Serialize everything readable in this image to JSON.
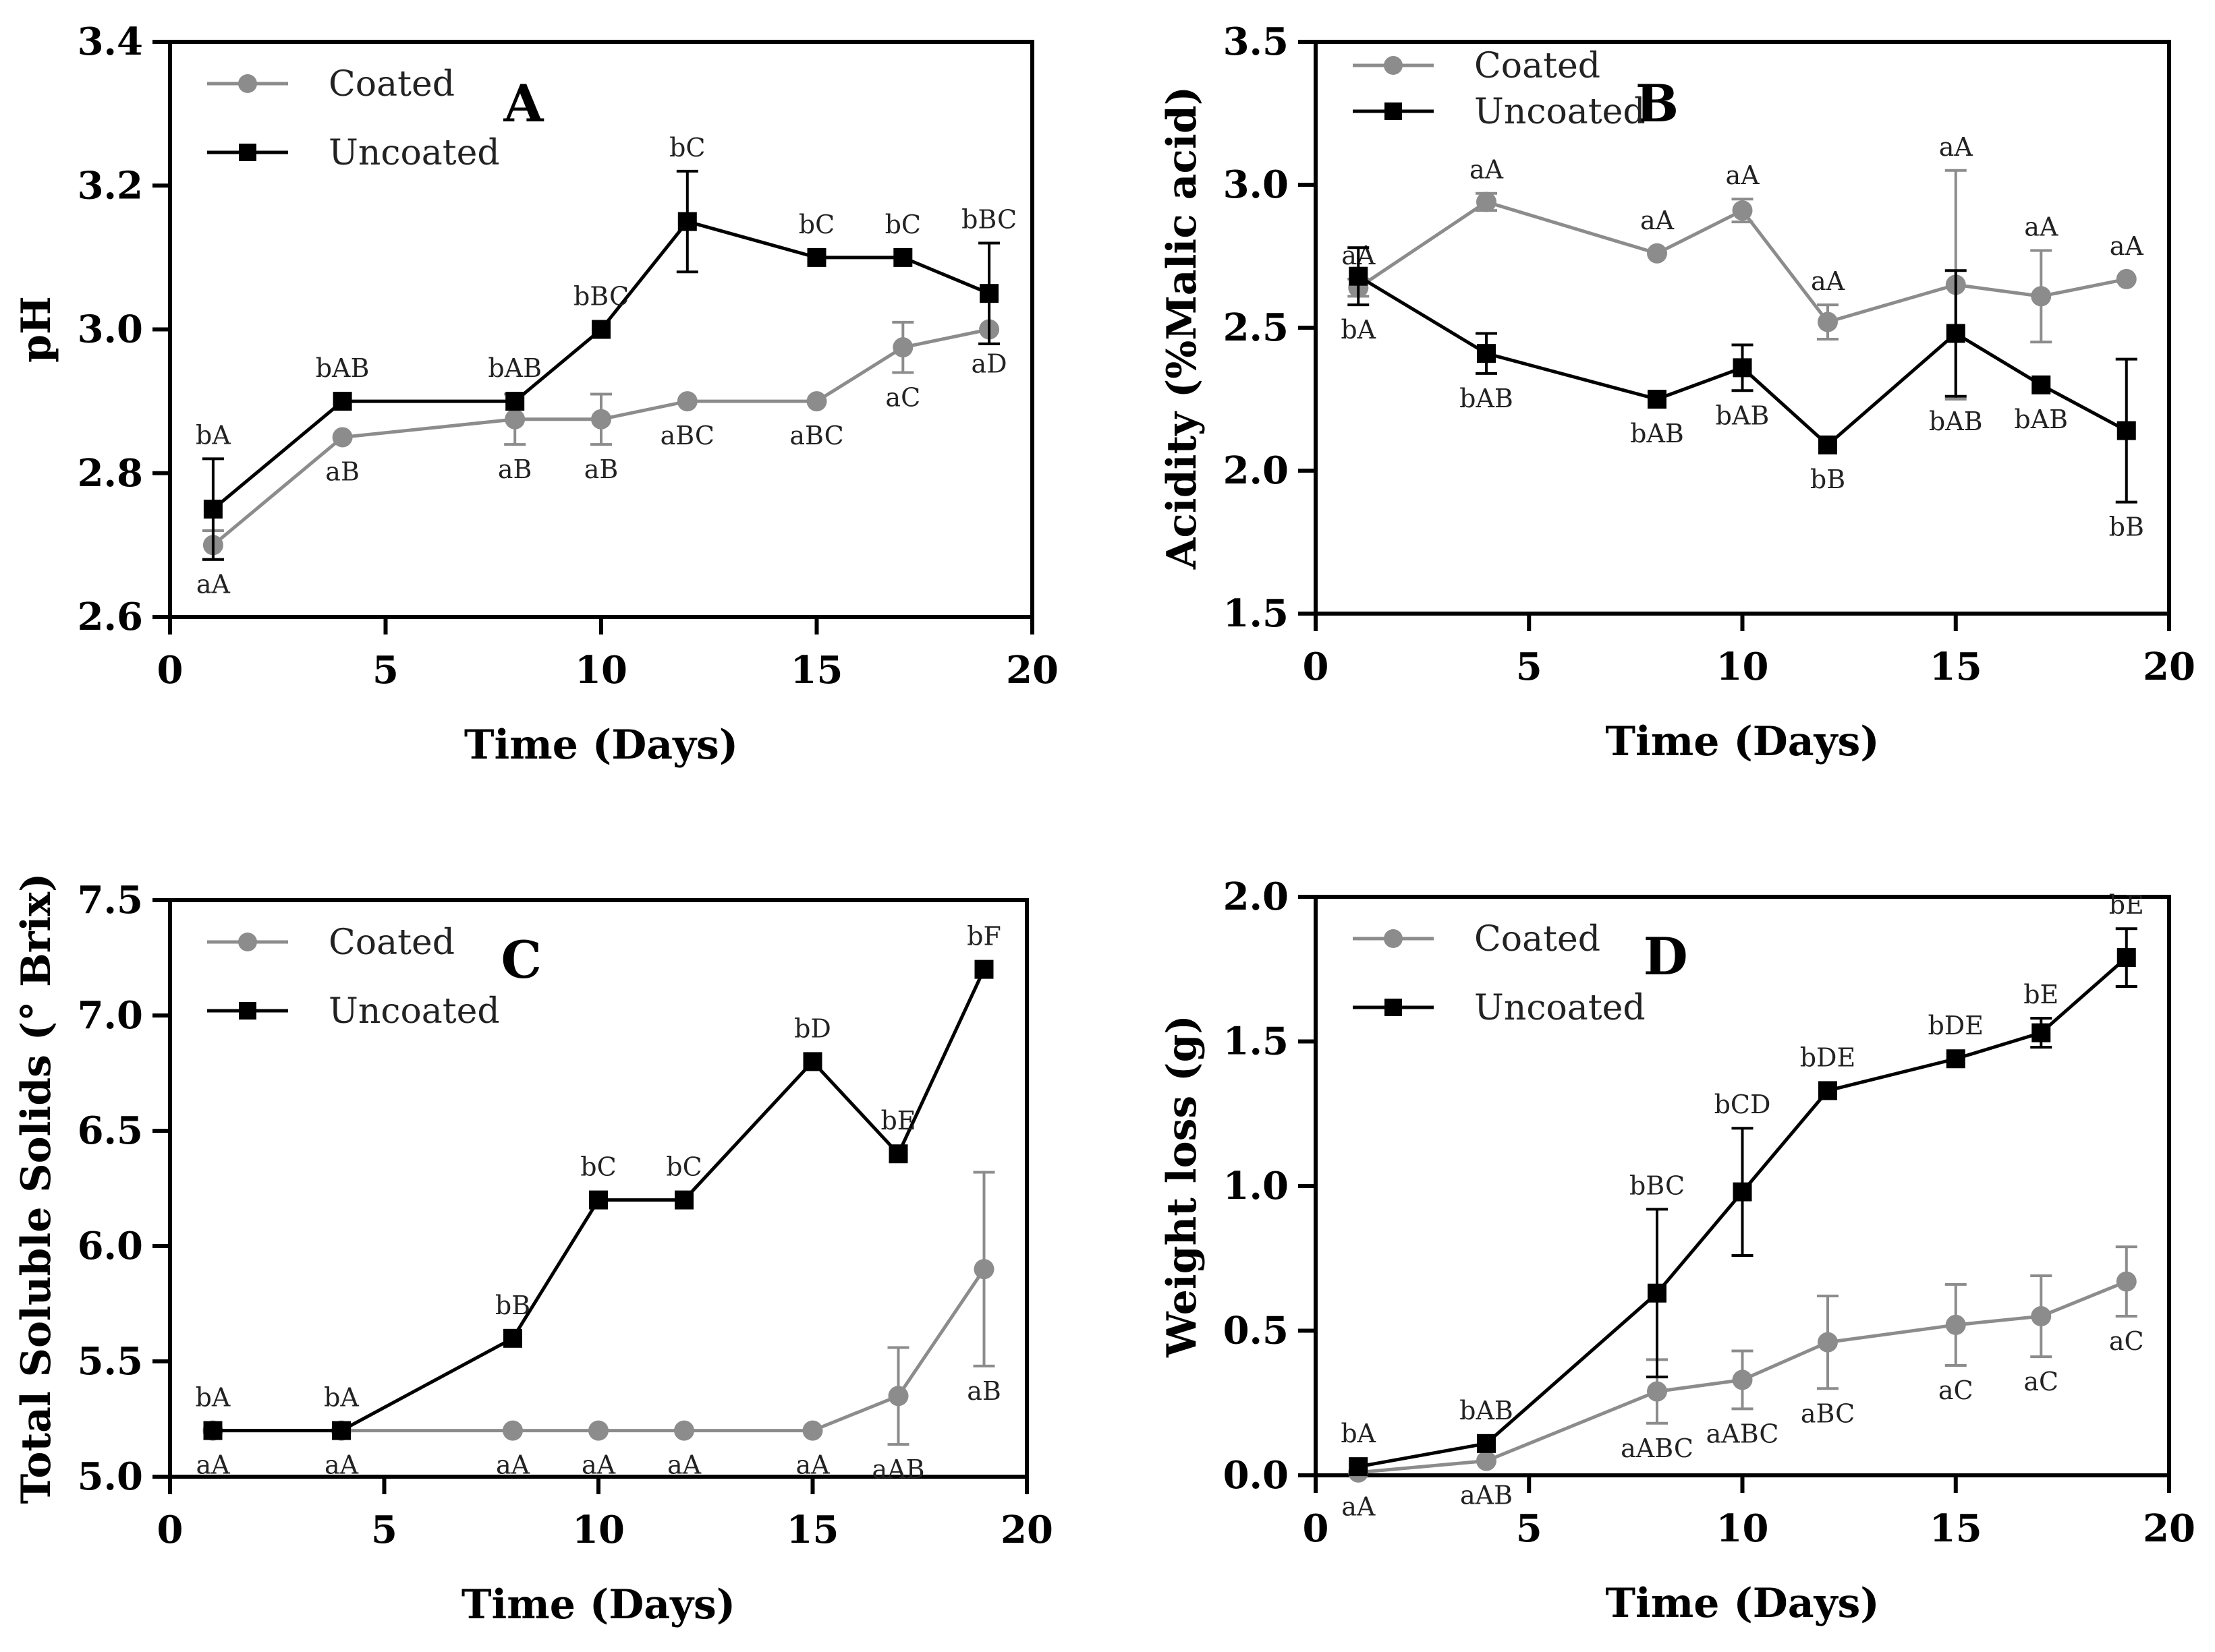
{
  "figure": {
    "colors": {
      "coated": "#8c8c8c",
      "uncoated": "#000000"
    },
    "marker_shapes": {
      "coated": "circle",
      "uncoated": "square"
    }
  },
  "chart_data": [
    {
      "id": "A",
      "type": "line",
      "panel_label": "A",
      "xlabel": "Time (Days)",
      "ylabel": "pH",
      "xlim": [
        0,
        20
      ],
      "ylim": [
        2.6,
        3.4
      ],
      "xticks": [
        0,
        5,
        10,
        15,
        20
      ],
      "yticks": [
        2.6,
        2.8,
        3.0,
        3.2,
        3.4
      ],
      "tick_decimals": 1,
      "legend_position": "top-left",
      "series": [
        {
          "name": "Coated",
          "color": "#8c8c8c",
          "marker": "circle",
          "x": [
            1,
            4,
            8,
            10,
            12,
            15,
            17,
            19
          ],
          "y": [
            2.7,
            2.85,
            2.875,
            2.875,
            2.9,
            2.9,
            2.975,
            3.0
          ],
          "err": [
            0.02,
            0,
            0.035,
            0.035,
            0,
            0,
            0.035,
            0
          ],
          "labels": [
            "aA",
            "aB",
            "aB",
            "aB",
            "aBC",
            "aBC",
            "aC",
            "aD"
          ],
          "label_side": [
            "below",
            "below",
            "below",
            "below",
            "below",
            "below",
            "below",
            "below"
          ]
        },
        {
          "name": "Uncoated",
          "color": "#000000",
          "marker": "square",
          "x": [
            1,
            4,
            8,
            10,
            12,
            15,
            17,
            19
          ],
          "y": [
            2.75,
            2.9,
            2.9,
            3.0,
            3.15,
            3.1,
            3.1,
            3.05
          ],
          "err": [
            0.07,
            0,
            0,
            0,
            0.07,
            0,
            0,
            0.07
          ],
          "labels": [
            "bA",
            "bAB",
            "bAB",
            "bBC",
            "bC",
            "bC",
            "bC",
            "bBC"
          ],
          "label_side": [
            "above",
            "above",
            "above",
            "above",
            "above",
            "above",
            "above",
            "above"
          ]
        }
      ]
    },
    {
      "id": "B",
      "type": "line",
      "panel_label": "B",
      "xlabel": "Time (Days)",
      "ylabel": "Acidity (%Malic acid)",
      "xlim": [
        0,
        20
      ],
      "ylim": [
        1.5,
        3.5
      ],
      "xticks": [
        0,
        5,
        10,
        15,
        20
      ],
      "yticks": [
        1.5,
        2.0,
        2.5,
        3.0,
        3.5
      ],
      "tick_decimals": 1,
      "legend_position": "top-left",
      "series": [
        {
          "name": "Coated",
          "color": "#8c8c8c",
          "marker": "circle",
          "x": [
            1,
            4,
            8,
            10,
            12,
            15,
            17,
            19
          ],
          "y": [
            2.64,
            2.94,
            2.76,
            2.91,
            2.52,
            2.65,
            2.61,
            2.67
          ],
          "err": [
            0.03,
            0.03,
            0,
            0.04,
            0.06,
            0.4,
            0.16,
            0
          ],
          "labels": [
            "aA",
            "aA",
            "aA",
            "aA",
            "aA",
            "aA",
            "aA",
            "aA"
          ],
          "label_side": [
            "above",
            "above",
            "above",
            "above",
            "above",
            "above",
            "above",
            "above"
          ]
        },
        {
          "name": "Uncoated",
          "color": "#000000",
          "marker": "square",
          "x": [
            1,
            4,
            8,
            10,
            12,
            15,
            17,
            19
          ],
          "y": [
            2.68,
            2.41,
            2.25,
            2.36,
            2.09,
            2.48,
            2.3,
            2.14
          ],
          "err": [
            0.1,
            0.07,
            0,
            0.08,
            0,
            0.22,
            0,
            0.25
          ],
          "labels": [
            "bA",
            "bAB",
            "bAB",
            "bAB",
            "bB",
            "bAB",
            "bAB",
            "bB"
          ],
          "label_side": [
            "below",
            "below",
            "below",
            "below",
            "below",
            "below",
            "below",
            "below"
          ]
        }
      ]
    },
    {
      "id": "C",
      "type": "line",
      "panel_label": "C",
      "xlabel": "Time (Days)",
      "ylabel": "Total Soluble Solids (° Brix)",
      "xlim": [
        0,
        20
      ],
      "ylim": [
        5.0,
        7.5
      ],
      "xticks": [
        0,
        5,
        10,
        15,
        20
      ],
      "yticks": [
        5.0,
        5.5,
        6.0,
        6.5,
        7.0,
        7.5
      ],
      "tick_decimals": 1,
      "legend_position": "top-left",
      "series": [
        {
          "name": "Coated",
          "color": "#8c8c8c",
          "marker": "circle",
          "x": [
            1,
            4,
            8,
            10,
            12,
            15,
            17,
            19
          ],
          "y": [
            5.2,
            5.2,
            5.2,
            5.2,
            5.2,
            5.2,
            5.35,
            5.9
          ],
          "err": [
            0,
            0,
            0,
            0,
            0,
            0,
            0.21,
            0.42
          ],
          "labels": [
            "aA",
            "aA",
            "aA",
            "aA",
            "aA",
            "aA",
            "aAB",
            "aB"
          ],
          "label_side": [
            "below",
            "below",
            "below",
            "below",
            "below",
            "below",
            "below",
            "below"
          ]
        },
        {
          "name": "Uncoated",
          "color": "#000000",
          "marker": "square",
          "x": [
            1,
            4,
            8,
            10,
            12,
            15,
            17,
            19
          ],
          "y": [
            5.2,
            5.2,
            5.6,
            6.2,
            6.2,
            6.8,
            6.4,
            7.2
          ],
          "err": [
            0,
            0,
            0,
            0,
            0,
            0,
            0,
            0
          ],
          "labels": [
            "bA",
            "bA",
            "bB",
            "bC",
            "bC",
            "bD",
            "bE",
            "bF"
          ],
          "label_side": [
            "above",
            "above",
            "above",
            "above",
            "above",
            "above",
            "above",
            "above"
          ]
        }
      ]
    },
    {
      "id": "D",
      "type": "line",
      "panel_label": "D",
      "xlabel": "Time (Days)",
      "ylabel": "Weight loss (g)",
      "xlim": [
        0,
        20
      ],
      "ylim": [
        0.0,
        2.0
      ],
      "xticks": [
        0,
        5,
        10,
        15,
        20
      ],
      "yticks": [
        0.0,
        0.5,
        1.0,
        1.5,
        2.0
      ],
      "tick_decimals": 1,
      "legend_position": "top-left",
      "series": [
        {
          "name": "Coated",
          "color": "#8c8c8c",
          "marker": "circle",
          "x": [
            1,
            4,
            8,
            10,
            12,
            15,
            17,
            19
          ],
          "y": [
            0.01,
            0.05,
            0.29,
            0.33,
            0.46,
            0.52,
            0.55,
            0.67
          ],
          "err": [
            0,
            0,
            0.11,
            0.1,
            0.16,
            0.14,
            0.14,
            0.12
          ],
          "labels": [
            "aA",
            "aAB",
            "aABC",
            "aABC",
            "aBC",
            "aC",
            "aC",
            "aC"
          ],
          "label_side": [
            "below",
            "below",
            "below",
            "below",
            "below",
            "below",
            "below",
            "below"
          ]
        },
        {
          "name": "Uncoated",
          "color": "#000000",
          "marker": "square",
          "x": [
            1,
            4,
            8,
            10,
            12,
            15,
            17,
            19
          ],
          "y": [
            0.03,
            0.11,
            0.63,
            0.98,
            1.33,
            1.44,
            1.53,
            1.79
          ],
          "err": [
            0,
            0,
            0.29,
            0.22,
            0,
            0,
            0.05,
            0.1
          ],
          "labels": [
            "bA",
            "bAB",
            "bBC",
            "bCD",
            "bDE",
            "bDE",
            "bE",
            "bE"
          ],
          "label_side": [
            "above",
            "above",
            "above",
            "above",
            "above",
            "above",
            "above",
            "above"
          ]
        }
      ]
    }
  ]
}
